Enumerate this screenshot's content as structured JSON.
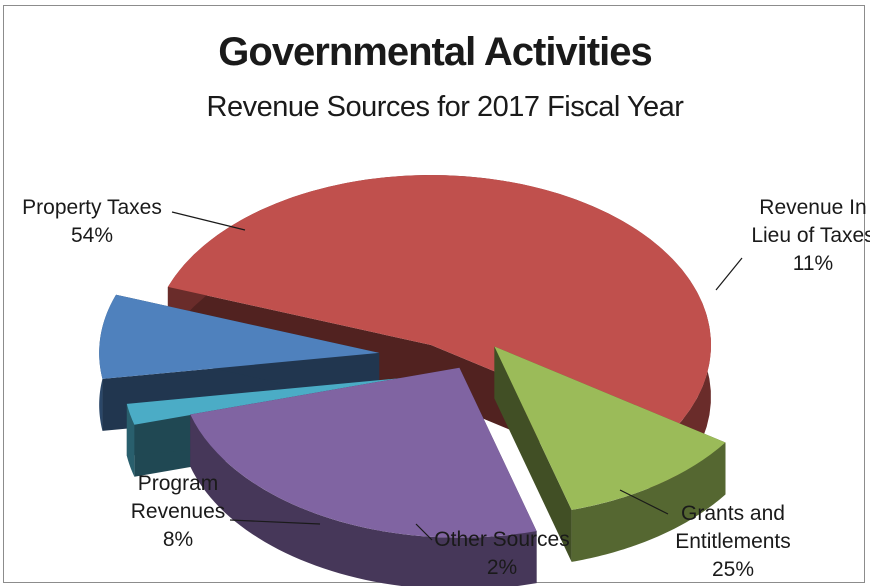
{
  "chart_data": {
    "type": "pie",
    "title": "Governmental Activities",
    "subtitle": "Revenue Sources for 2017 Fiscal Year",
    "slices": [
      {
        "label_lines": [
          "Property Taxes",
          "54%"
        ],
        "value": 54,
        "color": "#c0504d"
      },
      {
        "label_lines": [
          "Revenue In",
          "Lieu of Taxes",
          "11%"
        ],
        "value": 11,
        "color": "#9bbb59"
      },
      {
        "label_lines": [
          "Grants and",
          "Entitlements",
          "25%"
        ],
        "value": 25,
        "color": "#8064a2"
      },
      {
        "label_lines": [
          "Other Sources",
          "2%"
        ],
        "value": 2,
        "color": "#4bacc6"
      },
      {
        "label_lines": [
          "Program",
          "Revenues",
          "8%"
        ],
        "value": 8,
        "color": "#4f81bd"
      }
    ]
  }
}
